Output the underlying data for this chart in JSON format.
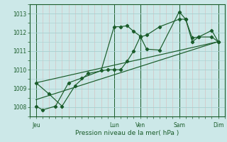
{
  "xlabel": "Pression niveau de la mer( hPa )",
  "bg_color": "#cce8e8",
  "grid_color_major": "#a8d0d0",
  "grid_color_minor": "#d8b8b8",
  "line_color": "#1a5c2a",
  "yticks": [
    1008,
    1009,
    1010,
    1011,
    1012,
    1013
  ],
  "ylim": [
    1007.6,
    1013.5
  ],
  "day_labels": [
    "Jeu",
    "Lun",
    "Ven",
    "Sam",
    "Dim"
  ],
  "day_positions": [
    0,
    12,
    16,
    22,
    28
  ],
  "xlim": [
    -0.5,
    29
  ],
  "series1_x": [
    0,
    1,
    3,
    5,
    7,
    10,
    12,
    13,
    14,
    15,
    16,
    17,
    19,
    22,
    23,
    24,
    25,
    27,
    28
  ],
  "series1_y": [
    1008.05,
    1007.85,
    1008.05,
    1009.3,
    1009.55,
    1009.95,
    1012.3,
    1012.3,
    1012.35,
    1012.05,
    1011.8,
    1011.1,
    1011.05,
    1013.1,
    1012.7,
    1011.7,
    1011.75,
    1012.1,
    1011.5
  ],
  "series2_x": [
    0,
    2,
    4,
    6,
    8,
    11,
    12,
    13,
    14,
    15,
    16,
    17,
    19,
    22,
    23,
    24,
    25,
    27,
    28
  ],
  "series2_y": [
    1009.3,
    1008.7,
    1008.05,
    1009.15,
    1009.8,
    1010.0,
    1010.0,
    1010.0,
    1010.45,
    1011.0,
    1011.75,
    1011.85,
    1012.3,
    1012.7,
    1012.7,
    1011.5,
    1011.75,
    1011.75,
    1011.5
  ],
  "trend_x": [
    0,
    28
  ],
  "trend_y": [
    1008.4,
    1011.5
  ],
  "trend2_x": [
    0,
    28
  ],
  "trend2_y": [
    1009.3,
    1011.5
  ]
}
